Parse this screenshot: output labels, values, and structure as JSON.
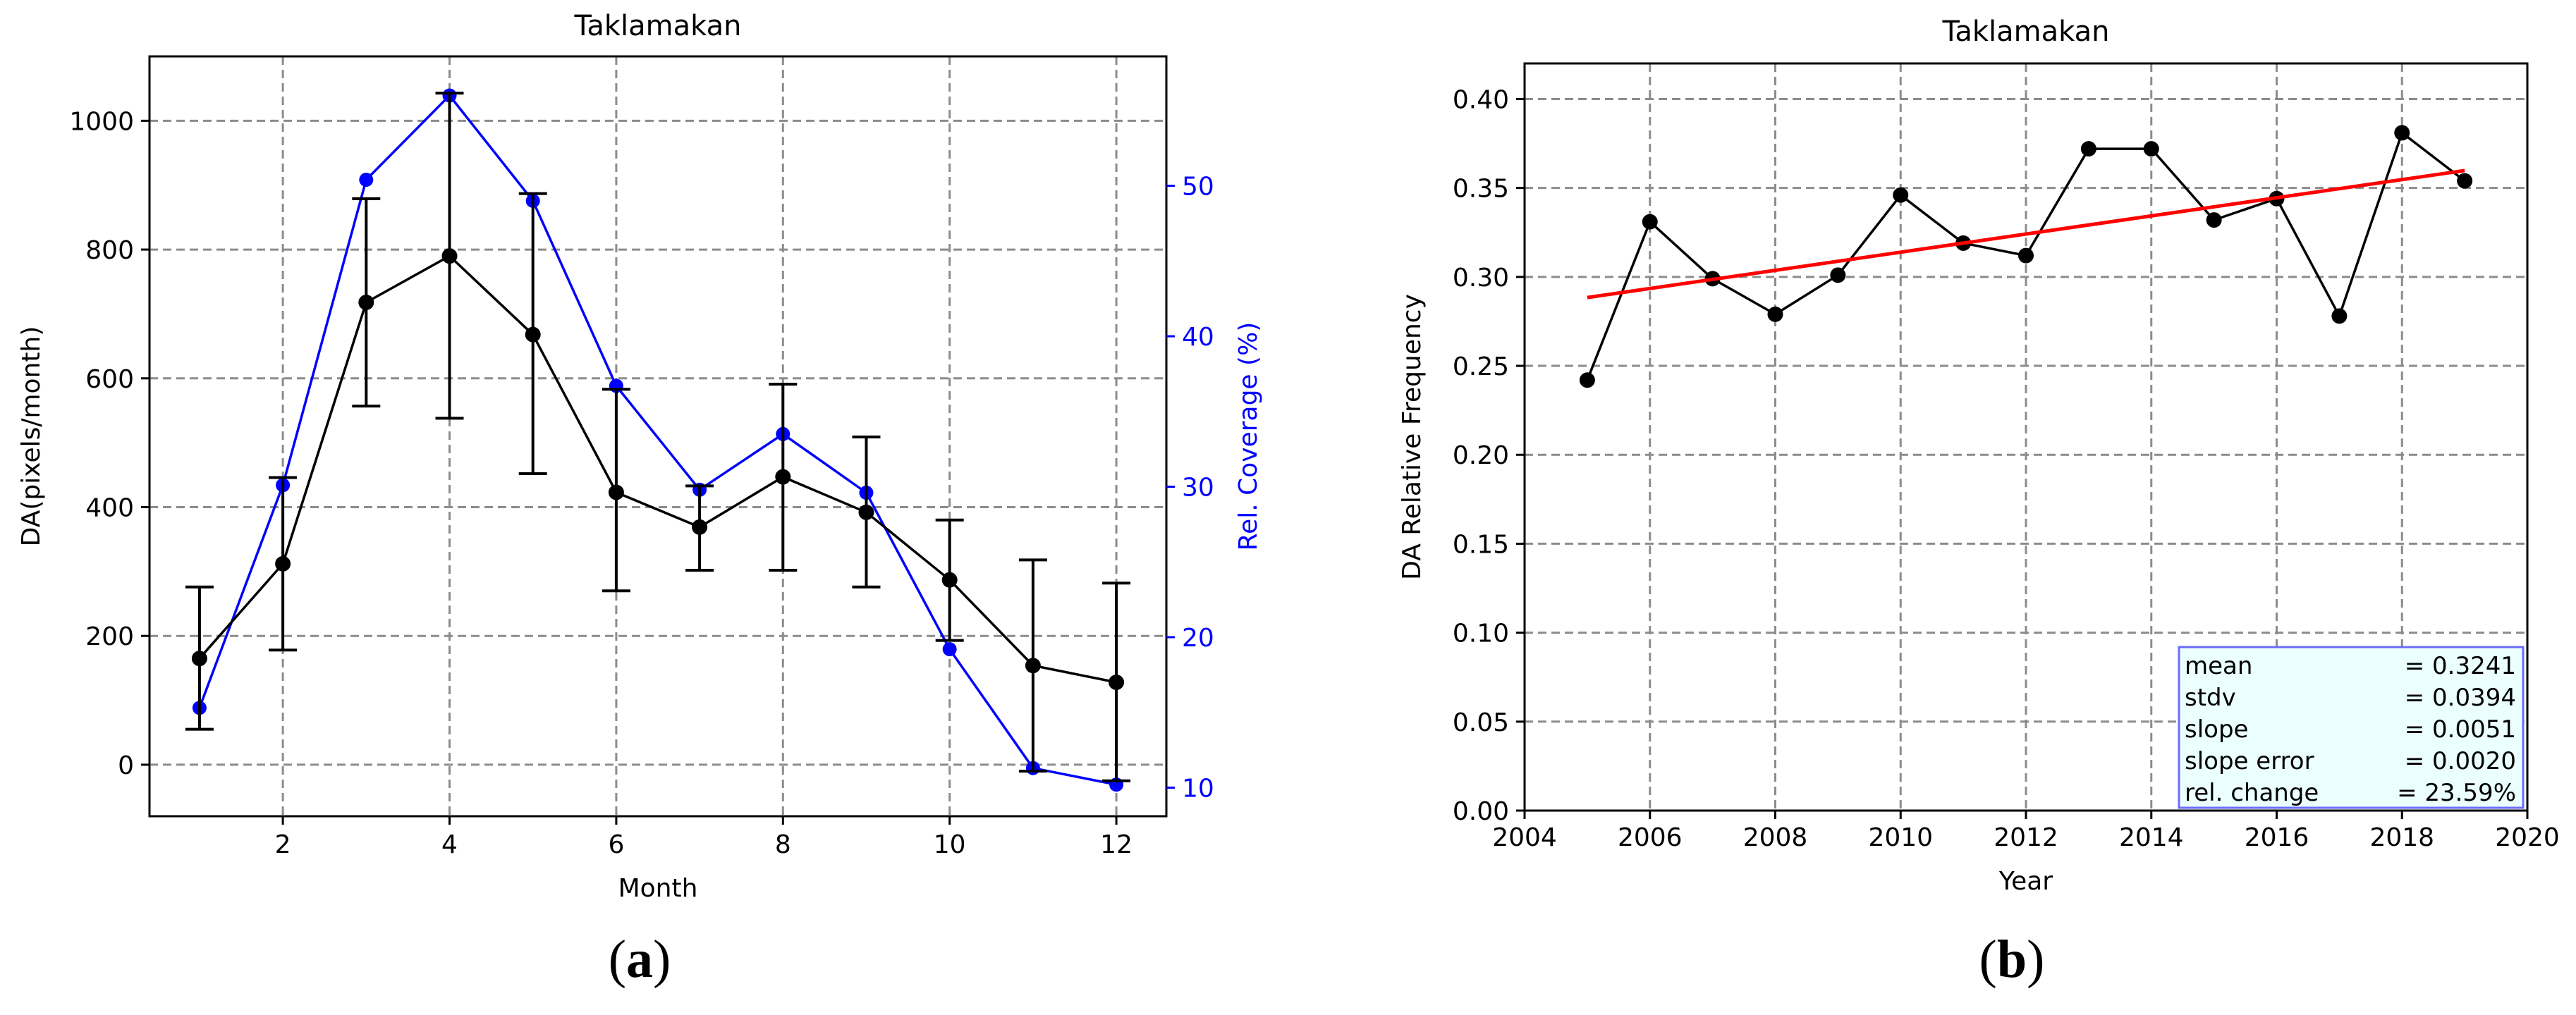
{
  "chart_data": [
    {
      "panel_label": "a",
      "type": "line",
      "title": "Taklamakan",
      "xlabel": "Month",
      "ylabel": "DA(pixels/month)",
      "y2label": "Rel. Coverage (%)",
      "xlim": [
        0.4,
        12.6
      ],
      "ylim": [
        -80,
        1100
      ],
      "y2lim": [
        8.1,
        58.6
      ],
      "xticks": [
        2,
        4,
        6,
        8,
        10,
        12
      ],
      "yticks": [
        0,
        200,
        400,
        600,
        800,
        1000
      ],
      "y2ticks": [
        10,
        20,
        30,
        40,
        50
      ],
      "grid": true,
      "series": [
        {
          "name": "DA",
          "axis": "left",
          "color": "#000000",
          "x": [
            1,
            2,
            3,
            4,
            5,
            6,
            7,
            8,
            9,
            10,
            11,
            12
          ],
          "values": [
            165,
            312,
            718,
            790,
            668,
            423,
            369,
            447,
            392,
            287,
            154,
            128
          ],
          "err_low": [
            55,
            178,
            557,
            538,
            452,
            270,
            302,
            302,
            276,
            193,
            -10,
            -25
          ],
          "err_high": [
            276,
            446,
            879,
            1043,
            887,
            583,
            433,
            591,
            509,
            380,
            318,
            282
          ]
        },
        {
          "name": "Rel. Coverage",
          "axis": "right",
          "color": "#0000ff",
          "x": [
            1,
            2,
            3,
            4,
            5,
            6,
            7,
            8,
            9,
            10,
            11,
            12
          ],
          "values": [
            15.3,
            30.1,
            50.4,
            56.0,
            49.0,
            36.7,
            29.8,
            33.5,
            29.6,
            19.2,
            11.3,
            10.2
          ]
        }
      ]
    },
    {
      "panel_label": "b",
      "type": "line",
      "title": "Taklamakan",
      "xlabel": "Year",
      "ylabel": "DA Relative Frequency",
      "xlim": [
        2004,
        2020
      ],
      "ylim": [
        0.0,
        0.42
      ],
      "xticks": [
        2004,
        2006,
        2008,
        2010,
        2012,
        2014,
        2016,
        2018,
        2020
      ],
      "yticks": [
        "0.00",
        "0.05",
        "0.10",
        "0.15",
        "0.20",
        "0.25",
        "0.30",
        "0.35",
        "0.40"
      ],
      "grid": true,
      "series": [
        {
          "name": "DA Relative Frequency",
          "color": "#000000",
          "x": [
            2005,
            2006,
            2007,
            2008,
            2009,
            2010,
            2011,
            2012,
            2013,
            2014,
            2015,
            2016,
            2017,
            2018,
            2019
          ],
          "values": [
            0.242,
            0.331,
            0.299,
            0.279,
            0.301,
            0.346,
            0.319,
            0.312,
            0.372,
            0.372,
            0.332,
            0.344,
            0.278,
            0.381,
            0.354
          ]
        },
        {
          "name": "trend",
          "color": "#ff0000",
          "x": [
            2005,
            2019
          ],
          "values": [
            0.2884,
            0.3598
          ]
        }
      ],
      "stats": [
        {
          "label": "mean",
          "value": "= 0.3241"
        },
        {
          "label": "stdv",
          "value": "= 0.0394"
        },
        {
          "label": "slope",
          "value": "= 0.0051"
        },
        {
          "label": "slope error",
          "value": "= 0.0020"
        },
        {
          "label": "rel. change",
          "value": "= 23.59%"
        }
      ],
      "stats_location": "lower-right"
    }
  ],
  "captions": [
    {
      "open": "(",
      "letter": "a",
      "close": ")"
    },
    {
      "open": "(",
      "letter": "b",
      "close": ")"
    }
  ]
}
